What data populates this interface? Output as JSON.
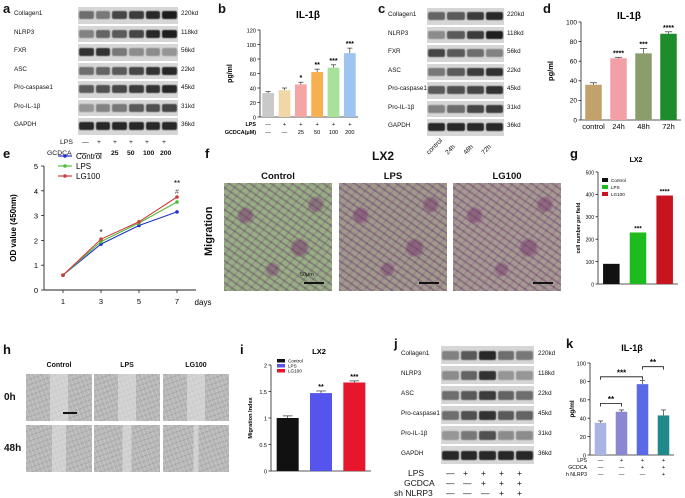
{
  "panels": {
    "a": {
      "letter": "a",
      "rows": [
        "Collagen1",
        "NLRP3",
        "FXR",
        "ASC",
        "Pro-caspase1",
        "Pro-IL-1β",
        "GAPDH"
      ],
      "kd": [
        "220kd",
        "118kd",
        "56kd",
        "22kd",
        "45kd",
        "31kd",
        "36kd"
      ],
      "lps_label": "LPS",
      "lps_signs": [
        "—",
        "+",
        "+",
        "+",
        "+",
        "+"
      ],
      "gcdca_label": "GCDCA",
      "gcdca_values": [
        "—",
        "—",
        "25",
        "50",
        "100",
        "200"
      ]
    },
    "b": {
      "letter": "b",
      "title": "IL-1β",
      "ylabel": "pg/ml",
      "lps_label": "LPS",
      "lps_signs": [
        "—",
        "+",
        "+",
        "+",
        "+",
        "+"
      ],
      "gcdca_label": "GCDCA(μM)",
      "gcdca_values": [
        "—",
        "—",
        "25",
        "50",
        "100",
        "200"
      ]
    },
    "c": {
      "letter": "c",
      "rows": [
        "Collagen1",
        "NLRP3",
        "FXR",
        "ASC",
        "Pro-caspase1",
        "Pro-IL-1β",
        "GAPDH"
      ],
      "kd": [
        "220kd",
        "118kd",
        "56kd",
        "22kd",
        "45kd",
        "31kd",
        "36kd"
      ],
      "lanes": [
        "control",
        "24h",
        "48h",
        "72h"
      ]
    },
    "d": {
      "letter": "d",
      "title": "IL-1β",
      "ylabel": "pg/ml"
    },
    "e": {
      "letter": "e",
      "ylabel": "OD value (450nm)",
      "xunit": "days"
    },
    "f": {
      "letter": "f",
      "title": "LX2",
      "side_label": "Migration",
      "columns": [
        "Control",
        "LPS",
        "LG100"
      ],
      "scale_label": "50μm"
    },
    "g": {
      "letter": "g",
      "title": "LX2",
      "ylabel": "cell number per field"
    },
    "h": {
      "letter": "h",
      "columns": [
        "Control",
        "LPS",
        "LG100"
      ],
      "rows": [
        "0h",
        "48h"
      ]
    },
    "i": {
      "letter": "i",
      "title": "LX2",
      "ylabel": "Migration Index"
    },
    "j": {
      "letter": "j",
      "rows": [
        "Collagen1",
        "NLRP3",
        "ASC",
        "Pro-caspase1",
        "Pro-IL-1β",
        "GAPDH"
      ],
      "kd": [
        "220kd",
        "118kd",
        "22kd",
        "45kd",
        "31kd",
        "36kd"
      ],
      "lps_label": "LPS",
      "lps_signs": [
        "—",
        "+",
        "+",
        "+",
        "+"
      ],
      "gcdca_label": "GCDCA",
      "gcdca_signs": [
        "—",
        "—",
        "+",
        "+",
        "+"
      ],
      "sh_label": "sh NLRP3",
      "sh_signs": [
        "—",
        "—",
        "—",
        "+",
        "+"
      ]
    },
    "k": {
      "letter": "k",
      "title": "IL-1β",
      "ylabel": "pg/ml",
      "lps_label": "LPS",
      "lps_signs": [
        "—",
        "+",
        "+",
        "+"
      ],
      "gcdca_label": "GCDCA",
      "gcdca_signs": [
        "—",
        "—",
        "+",
        "+"
      ],
      "sh_label": "sh NLRP3",
      "sh_signs": [
        "—",
        "—",
        "—",
        "+"
      ]
    }
  },
  "chart_data": [
    {
      "panel": "b",
      "type": "bar",
      "title": "IL-1β",
      "ylabel": "pg/ml",
      "categories": [
        "1",
        "2",
        "3",
        "4",
        "5",
        "6"
      ],
      "values": [
        33,
        37,
        45,
        62,
        68,
        88
      ],
      "errors": [
        2,
        3,
        3,
        4,
        4,
        7
      ],
      "significance": [
        "",
        "",
        "*",
        "**",
        "***",
        "***"
      ],
      "colors": [
        "#c9c9c9",
        "#f2d7a6",
        "#f4a6a4",
        "#f6b04f",
        "#a8e29a",
        "#9ec5f0"
      ],
      "ylim": [
        0,
        120
      ],
      "yticks": [
        0,
        20,
        40,
        60,
        80,
        100,
        120
      ]
    },
    {
      "panel": "d",
      "type": "bar",
      "title": "IL-1β",
      "ylabel": "pg/ml",
      "categories": [
        "control",
        "24h",
        "48h",
        "72h"
      ],
      "values": [
        36,
        63,
        68,
        88
      ],
      "errors": [
        2,
        1,
        5,
        2
      ],
      "significance": [
        "",
        "****",
        "***",
        "****"
      ],
      "colors": [
        "#c2a26a",
        "#f2a0a6",
        "#8a9d6a",
        "#1e8c2a"
      ],
      "ylim": [
        0,
        100
      ],
      "yticks": [
        0,
        20,
        40,
        60,
        80,
        100
      ]
    },
    {
      "panel": "e",
      "type": "line",
      "ylabel": "OD value (450nm)",
      "xlabel": "days",
      "x": [
        1,
        3,
        5,
        7
      ],
      "series": [
        {
          "name": "Control",
          "values": [
            0.6,
            1.85,
            2.6,
            3.15
          ],
          "color": "#2233cc"
        },
        {
          "name": "LPS",
          "values": [
            0.6,
            1.95,
            2.7,
            3.55
          ],
          "color": "#4fbf3a"
        },
        {
          "name": "LG100",
          "values": [
            0.6,
            2.05,
            2.75,
            3.75
          ],
          "color": "#d23a3a"
        }
      ],
      "annotations": [
        {
          "x": 3,
          "text": "*"
        },
        {
          "x": 7,
          "text": "#"
        },
        {
          "x": 7,
          "text": "**"
        }
      ],
      "ylim": [
        0,
        5
      ],
      "yticks": [
        0,
        1,
        2,
        3,
        4,
        5
      ]
    },
    {
      "panel": "g",
      "type": "bar",
      "title": "LX2",
      "ylabel": "cell number per field",
      "categories": [
        "Control",
        "LPS",
        "LG100"
      ],
      "series_names": [
        "Control",
        "LPS",
        "LG100"
      ],
      "values": [
        90,
        230,
        395
      ],
      "significance": [
        "",
        "***",
        "****"
      ],
      "colors": [
        "#111111",
        "#1dbb1d",
        "#c8141e"
      ],
      "ylim": [
        0,
        500
      ],
      "yticks": [
        0,
        100,
        200,
        300,
        400,
        500
      ]
    },
    {
      "panel": "i",
      "type": "bar",
      "title": "LX2",
      "ylabel": "Migration Index",
      "categories": [
        "Control",
        "LPS",
        "LG100"
      ],
      "series_names": [
        "Control",
        "LPS",
        "LG100"
      ],
      "values": [
        1.0,
        1.47,
        1.67
      ],
      "errors": [
        0.04,
        0.04,
        0.03
      ],
      "significance": [
        "",
        "**",
        "***"
      ],
      "colors": [
        "#111111",
        "#5555ee",
        "#e8162c"
      ],
      "ylim": [
        0,
        2.0
      ],
      "yticks": [
        0.0,
        0.5,
        1.0,
        1.5,
        2.0
      ]
    },
    {
      "panel": "k",
      "type": "bar",
      "title": "IL-1β",
      "ylabel": "pg/ml",
      "categories": [
        "1",
        "2",
        "3",
        "4"
      ],
      "values": [
        35,
        47,
        77,
        43
      ],
      "errors": [
        2,
        2,
        4,
        6
      ],
      "colors": [
        "#a9b4e0",
        "#8a88d0",
        "#5a6ae6",
        "#208a8a"
      ],
      "brackets": [
        {
          "from": 0,
          "to": 1,
          "text": "**"
        },
        {
          "from": 0,
          "to": 2,
          "text": "***"
        },
        {
          "from": 2,
          "to": 3,
          "text": "**"
        }
      ],
      "ylim": [
        0,
        100
      ],
      "yticks": [
        0,
        20,
        40,
        60,
        80,
        100
      ]
    }
  ]
}
